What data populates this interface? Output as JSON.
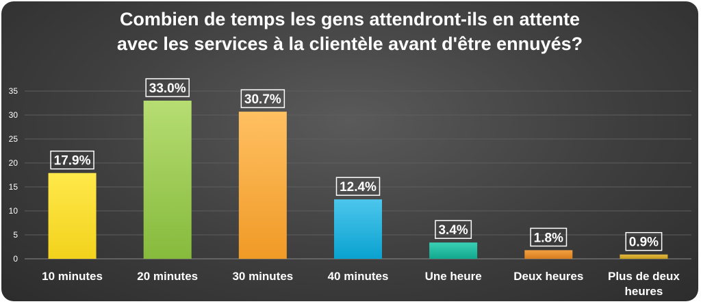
{
  "chart_data": {
    "type": "bar",
    "title": "Combien de temps les gens attendront-ils en attente avec les services à la clientèle avant d'être ennuyés?",
    "title_lines": [
      "Combien de temps les gens attendront-ils en attente",
      "avec les services à la clientèle avant d'être ennuyés?"
    ],
    "categories": [
      "10 minutes",
      "20 minutes",
      "30 minutes",
      "40 minutes",
      "Une heure",
      "Deux heures",
      "Plus de deux heures"
    ],
    "category_lines": [
      [
        "10 minutes"
      ],
      [
        "20 minutes"
      ],
      [
        "30 minutes"
      ],
      [
        "40 minutes"
      ],
      [
        "Une heure"
      ],
      [
        "Deux heures"
      ],
      [
        "Plus de deux",
        "heures"
      ]
    ],
    "values": [
      17.9,
      33.0,
      30.7,
      12.4,
      3.4,
      1.8,
      0.9
    ],
    "data_labels": [
      "17.9%",
      "33.0%",
      "30.7%",
      "12.4%",
      "3.4%",
      "1.8%",
      "0.9%"
    ],
    "yticks": [
      0,
      5,
      10,
      15,
      20,
      25,
      30,
      35
    ],
    "ylim": [
      0,
      35
    ],
    "xlabel": "",
    "ylabel": "",
    "grid": true,
    "legend": "none",
    "bar_colors": [
      [
        "#ffe84a",
        "#f2d21c"
      ],
      [
        "#b6dd72",
        "#86ba3c"
      ],
      [
        "#ffc062",
        "#f09a26"
      ],
      [
        "#4cc6ec",
        "#0aa2d0"
      ],
      [
        "#3ad0b6",
        "#12a88e"
      ],
      [
        "#f4a040",
        "#d67c1e"
      ],
      [
        "#e2b840",
        "#c69c1e"
      ]
    ],
    "background_color": "#444444",
    "grid_color": "#5e5e5e",
    "text_color": "#ffffff"
  }
}
